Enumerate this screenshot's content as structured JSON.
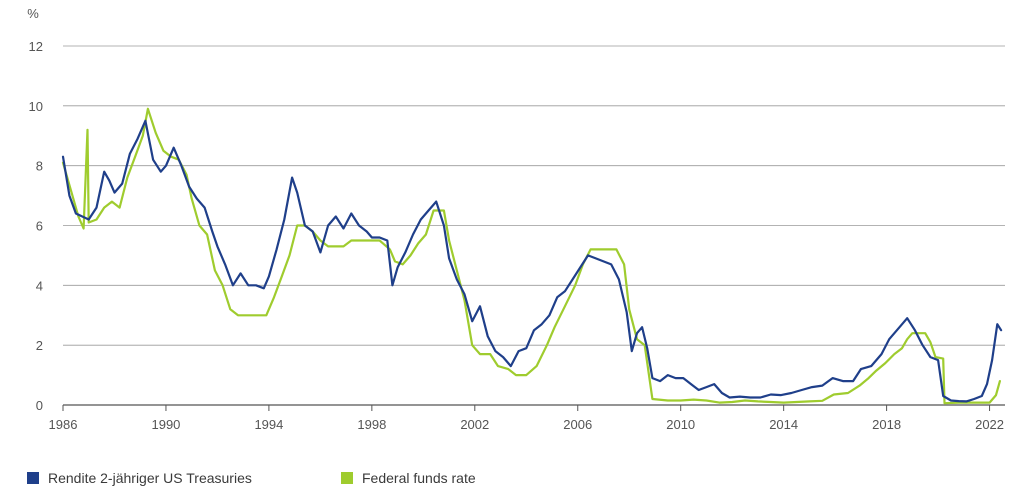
{
  "chart_data": {
    "type": "line",
    "y_unit_label": "%",
    "xlim": [
      1986,
      2022.6
    ],
    "ylim": [
      0,
      12
    ],
    "grid": "horizontal",
    "x_ticks": [
      1986,
      1990,
      1994,
      1998,
      2002,
      2006,
      2010,
      2014,
      2018,
      2022
    ],
    "x_tick_labels": [
      "1986",
      "1990",
      "1994",
      "1998",
      "2002",
      "2006",
      "2010",
      "2014",
      "2018",
      "2022"
    ],
    "y_ticks": [
      0,
      2,
      4,
      6,
      8,
      10,
      12
    ],
    "y_tick_labels": [
      "0",
      "2",
      "4",
      "6",
      "8",
      "10",
      "12"
    ],
    "legend_position": "bottom-left",
    "series": [
      {
        "name": "Rendite 2-jähriger US Treasuries",
        "color": "#1f3f8a",
        "points": [
          [
            1986.0,
            8.3
          ],
          [
            1986.25,
            7.0
          ],
          [
            1986.5,
            6.4
          ],
          [
            1986.75,
            6.3
          ],
          [
            1987.0,
            6.2
          ],
          [
            1987.3,
            6.6
          ],
          [
            1987.6,
            7.8
          ],
          [
            1987.8,
            7.5
          ],
          [
            1988.0,
            7.1
          ],
          [
            1988.3,
            7.4
          ],
          [
            1988.6,
            8.4
          ],
          [
            1988.9,
            8.9
          ],
          [
            1989.2,
            9.5
          ],
          [
            1989.5,
            8.2
          ],
          [
            1989.8,
            7.8
          ],
          [
            1990.0,
            8.0
          ],
          [
            1990.3,
            8.6
          ],
          [
            1990.6,
            8.0
          ],
          [
            1990.9,
            7.3
          ],
          [
            1991.2,
            6.9
          ],
          [
            1991.5,
            6.6
          ],
          [
            1991.8,
            5.8
          ],
          [
            1992.0,
            5.3
          ],
          [
            1992.3,
            4.7
          ],
          [
            1992.6,
            4.0
          ],
          [
            1992.9,
            4.4
          ],
          [
            1993.2,
            4.0
          ],
          [
            1993.5,
            4.0
          ],
          [
            1993.8,
            3.9
          ],
          [
            1994.0,
            4.3
          ],
          [
            1994.3,
            5.2
          ],
          [
            1994.6,
            6.2
          ],
          [
            1994.9,
            7.6
          ],
          [
            1995.1,
            7.1
          ],
          [
            1995.4,
            6.0
          ],
          [
            1995.7,
            5.8
          ],
          [
            1996.0,
            5.1
          ],
          [
            1996.3,
            6.0
          ],
          [
            1996.6,
            6.3
          ],
          [
            1996.9,
            5.9
          ],
          [
            1997.2,
            6.4
          ],
          [
            1997.5,
            6.0
          ],
          [
            1997.8,
            5.8
          ],
          [
            1998.0,
            5.6
          ],
          [
            1998.3,
            5.6
          ],
          [
            1998.6,
            5.5
          ],
          [
            1998.8,
            4.0
          ],
          [
            1999.0,
            4.6
          ],
          [
            1999.3,
            5.1
          ],
          [
            1999.6,
            5.7
          ],
          [
            1999.9,
            6.2
          ],
          [
            2000.2,
            6.5
          ],
          [
            2000.5,
            6.8
          ],
          [
            2000.8,
            6.0
          ],
          [
            2001.0,
            4.9
          ],
          [
            2001.3,
            4.2
          ],
          [
            2001.6,
            3.7
          ],
          [
            2001.9,
            2.8
          ],
          [
            2002.2,
            3.3
          ],
          [
            2002.5,
            2.3
          ],
          [
            2002.8,
            1.8
          ],
          [
            2003.1,
            1.6
          ],
          [
            2003.4,
            1.3
          ],
          [
            2003.7,
            1.8
          ],
          [
            2004.0,
            1.9
          ],
          [
            2004.3,
            2.5
          ],
          [
            2004.6,
            2.7
          ],
          [
            2004.9,
            3.0
          ],
          [
            2005.2,
            3.6
          ],
          [
            2005.5,
            3.8
          ],
          [
            2005.8,
            4.2
          ],
          [
            2006.1,
            4.6
          ],
          [
            2006.4,
            5.0
          ],
          [
            2006.7,
            4.9
          ],
          [
            2007.0,
            4.8
          ],
          [
            2007.3,
            4.7
          ],
          [
            2007.6,
            4.2
          ],
          [
            2007.9,
            3.1
          ],
          [
            2008.1,
            1.8
          ],
          [
            2008.3,
            2.4
          ],
          [
            2008.5,
            2.6
          ],
          [
            2008.7,
            1.9
          ],
          [
            2008.9,
            0.9
          ],
          [
            2009.2,
            0.8
          ],
          [
            2009.5,
            1.0
          ],
          [
            2009.8,
            0.9
          ],
          [
            2010.1,
            0.9
          ],
          [
            2010.4,
            0.7
          ],
          [
            2010.7,
            0.5
          ],
          [
            2011.0,
            0.6
          ],
          [
            2011.3,
            0.7
          ],
          [
            2011.6,
            0.4
          ],
          [
            2011.9,
            0.25
          ],
          [
            2012.3,
            0.28
          ],
          [
            2012.7,
            0.25
          ],
          [
            2013.1,
            0.25
          ],
          [
            2013.5,
            0.35
          ],
          [
            2013.9,
            0.33
          ],
          [
            2014.3,
            0.4
          ],
          [
            2014.7,
            0.5
          ],
          [
            2015.1,
            0.6
          ],
          [
            2015.5,
            0.65
          ],
          [
            2015.9,
            0.9
          ],
          [
            2016.3,
            0.8
          ],
          [
            2016.7,
            0.8
          ],
          [
            2017.0,
            1.2
          ],
          [
            2017.4,
            1.3
          ],
          [
            2017.8,
            1.7
          ],
          [
            2018.1,
            2.2
          ],
          [
            2018.5,
            2.6
          ],
          [
            2018.8,
            2.9
          ],
          [
            2019.1,
            2.5
          ],
          [
            2019.4,
            2.0
          ],
          [
            2019.7,
            1.6
          ],
          [
            2020.0,
            1.5
          ],
          [
            2020.2,
            0.3
          ],
          [
            2020.5,
            0.15
          ],
          [
            2020.8,
            0.13
          ],
          [
            2021.1,
            0.12
          ],
          [
            2021.4,
            0.2
          ],
          [
            2021.7,
            0.3
          ],
          [
            2021.9,
            0.7
          ],
          [
            2022.1,
            1.5
          ],
          [
            2022.3,
            2.7
          ],
          [
            2022.45,
            2.5
          ]
        ]
      },
      {
        "name": "Federal funds rate",
        "color": "#9fcc2e",
        "points": [
          [
            1986.0,
            8.1
          ],
          [
            1986.3,
            7.2
          ],
          [
            1986.6,
            6.3
          ],
          [
            1986.8,
            5.9
          ],
          [
            1986.95,
            9.2
          ],
          [
            1987.0,
            6.1
          ],
          [
            1987.3,
            6.2
          ],
          [
            1987.6,
            6.6
          ],
          [
            1987.9,
            6.8
          ],
          [
            1988.2,
            6.6
          ],
          [
            1988.5,
            7.6
          ],
          [
            1988.8,
            8.3
          ],
          [
            1989.1,
            9.0
          ],
          [
            1989.3,
            9.9
          ],
          [
            1989.6,
            9.1
          ],
          [
            1989.9,
            8.5
          ],
          [
            1990.2,
            8.3
          ],
          [
            1990.5,
            8.2
          ],
          [
            1990.8,
            7.7
          ],
          [
            1991.0,
            6.9
          ],
          [
            1991.3,
            6.0
          ],
          [
            1991.6,
            5.7
          ],
          [
            1991.9,
            4.5
          ],
          [
            1992.2,
            4.0
          ],
          [
            1992.5,
            3.2
          ],
          [
            1992.8,
            3.0
          ],
          [
            1993.1,
            3.0
          ],
          [
            1993.5,
            3.0
          ],
          [
            1993.9,
            3.0
          ],
          [
            1994.2,
            3.6
          ],
          [
            1994.5,
            4.3
          ],
          [
            1994.8,
            5.0
          ],
          [
            1995.1,
            6.0
          ],
          [
            1995.4,
            6.0
          ],
          [
            1995.7,
            5.8
          ],
          [
            1996.0,
            5.5
          ],
          [
            1996.3,
            5.3
          ],
          [
            1996.6,
            5.3
          ],
          [
            1996.9,
            5.3
          ],
          [
            1997.2,
            5.5
          ],
          [
            1997.6,
            5.5
          ],
          [
            1997.9,
            5.5
          ],
          [
            1998.3,
            5.5
          ],
          [
            1998.7,
            5.2
          ],
          [
            1998.9,
            4.8
          ],
          [
            1999.2,
            4.7
          ],
          [
            1999.5,
            5.0
          ],
          [
            1999.8,
            5.4
          ],
          [
            2000.1,
            5.7
          ],
          [
            2000.4,
            6.5
          ],
          [
            2000.8,
            6.5
          ],
          [
            2001.0,
            5.5
          ],
          [
            2001.3,
            4.5
          ],
          [
            2001.6,
            3.5
          ],
          [
            2001.9,
            2.0
          ],
          [
            2002.2,
            1.7
          ],
          [
            2002.6,
            1.7
          ],
          [
            2002.9,
            1.3
          ],
          [
            2003.3,
            1.2
          ],
          [
            2003.6,
            1.0
          ],
          [
            2004.0,
            1.0
          ],
          [
            2004.4,
            1.3
          ],
          [
            2004.8,
            2.0
          ],
          [
            2005.1,
            2.6
          ],
          [
            2005.5,
            3.3
          ],
          [
            2005.9,
            4.0
          ],
          [
            2006.2,
            4.7
          ],
          [
            2006.5,
            5.2
          ],
          [
            2007.0,
            5.2
          ],
          [
            2007.5,
            5.2
          ],
          [
            2007.8,
            4.7
          ],
          [
            2008.0,
            3.2
          ],
          [
            2008.3,
            2.2
          ],
          [
            2008.6,
            2.0
          ],
          [
            2008.9,
            0.2
          ],
          [
            2009.5,
            0.15
          ],
          [
            2010.0,
            0.15
          ],
          [
            2010.5,
            0.18
          ],
          [
            2011.0,
            0.15
          ],
          [
            2011.5,
            0.08
          ],
          [
            2012.0,
            0.1
          ],
          [
            2012.5,
            0.15
          ],
          [
            2013.0,
            0.12
          ],
          [
            2013.5,
            0.1
          ],
          [
            2014.0,
            0.08
          ],
          [
            2014.5,
            0.1
          ],
          [
            2015.0,
            0.12
          ],
          [
            2015.5,
            0.14
          ],
          [
            2015.95,
            0.35
          ],
          [
            2016.5,
            0.4
          ],
          [
            2016.95,
            0.65
          ],
          [
            2017.3,
            0.9
          ],
          [
            2017.6,
            1.15
          ],
          [
            2017.95,
            1.4
          ],
          [
            2018.3,
            1.7
          ],
          [
            2018.6,
            1.9
          ],
          [
            2018.8,
            2.2
          ],
          [
            2019.0,
            2.4
          ],
          [
            2019.5,
            2.4
          ],
          [
            2019.7,
            2.1
          ],
          [
            2019.9,
            1.6
          ],
          [
            2020.2,
            1.55
          ],
          [
            2020.25,
            0.06
          ],
          [
            2020.8,
            0.08
          ],
          [
            2021.4,
            0.08
          ],
          [
            2022.0,
            0.08
          ],
          [
            2022.25,
            0.33
          ],
          [
            2022.4,
            0.8
          ]
        ]
      }
    ]
  }
}
